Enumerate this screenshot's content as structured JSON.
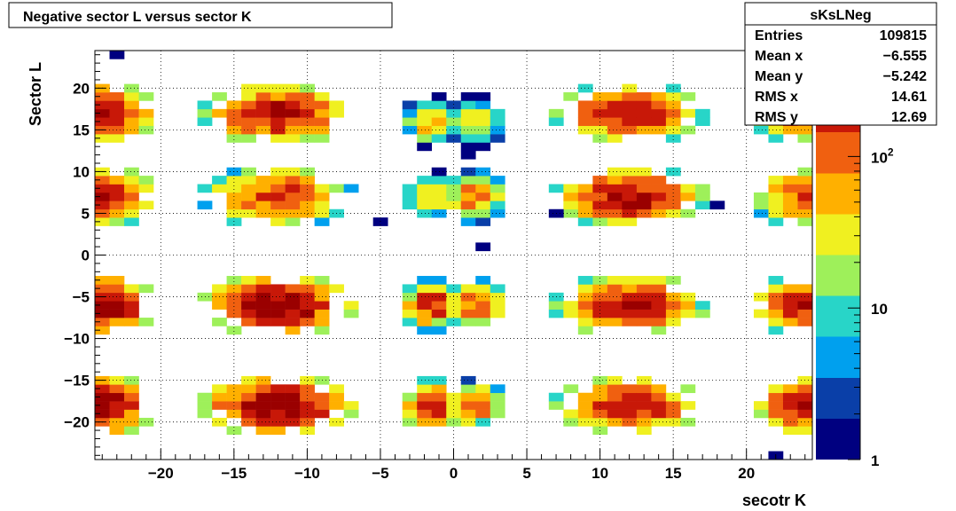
{
  "chart_data": {
    "type": "heatmap",
    "title": "Negative sector L versus sector K",
    "xlabel": "secotr K",
    "ylabel": "Sector L",
    "xlim": [
      -24.5,
      24.5
    ],
    "ylim": [
      -24.5,
      24.5
    ],
    "x_ticks": [
      "−20",
      "−15",
      "−10",
      "−5",
      "0",
      "5",
      "10",
      "15",
      "20"
    ],
    "x_tick_values": [
      -20,
      -15,
      -10,
      -5,
      0,
      5,
      10,
      15,
      20
    ],
    "y_ticks": [
      "−20",
      "−15",
      "−10",
      "−5",
      "0",
      "5",
      "10",
      "15",
      "20"
    ],
    "y_tick_values": [
      -20,
      -15,
      -10,
      -5,
      0,
      5,
      10,
      15,
      20
    ],
    "z_scale": "log",
    "z_range": [
      1,
      500
    ],
    "z_ticks": [
      "1",
      "10",
      "10^2"
    ],
    "z_tick_values": [
      1,
      10,
      100
    ],
    "grid": true,
    "colormap": [
      "#000080",
      "#0a3fa8",
      "#00a0ee",
      "#28d5c8",
      "#9ef05a",
      "#f0f020",
      "#ffb000",
      "#f06010",
      "#c81808",
      "#9a0000"
    ],
    "clusters": [
      {
        "xc": -12,
        "yc": 17,
        "rx": 3.5,
        "ry": 2.5,
        "peak": 300
      },
      {
        "xc": -12,
        "yc": 7,
        "rx": 3.5,
        "ry": 2.5,
        "peak": 180
      },
      {
        "xc": -12,
        "yc": -6,
        "rx": 3.5,
        "ry": 2.5,
        "peak": 500
      },
      {
        "xc": -12,
        "yc": -18,
        "rx": 3.5,
        "ry": 2.5,
        "peak": 500
      },
      {
        "xc": 12,
        "yc": 17,
        "rx": 3.5,
        "ry": 2.5,
        "peak": 250
      },
      {
        "xc": 12,
        "yc": 7,
        "rx": 3.5,
        "ry": 2.5,
        "peak": 300
      },
      {
        "xc": 12,
        "yc": -6,
        "rx": 3.5,
        "ry": 2.5,
        "peak": 300
      },
      {
        "xc": 12,
        "yc": -18,
        "rx": 3.5,
        "ry": 2.5,
        "peak": 250
      },
      {
        "xc": -24,
        "yc": 17,
        "rx": 2.5,
        "ry": 2.5,
        "peak": 350
      },
      {
        "xc": -24,
        "yc": 7,
        "rx": 2.5,
        "ry": 2.5,
        "peak": 250
      },
      {
        "xc": -24,
        "yc": -6,
        "rx": 2.5,
        "ry": 2.5,
        "peak": 450
      },
      {
        "xc": -24,
        "yc": -18,
        "rx": 2.5,
        "ry": 2.5,
        "peak": 450
      },
      {
        "xc": 24,
        "yc": 17,
        "rx": 2.5,
        "ry": 2.5,
        "peak": 200
      },
      {
        "xc": 24,
        "yc": 7,
        "rx": 2.5,
        "ry": 2.5,
        "peak": 150
      },
      {
        "xc": 24,
        "yc": -6,
        "rx": 2.5,
        "ry": 2.5,
        "peak": 250
      },
      {
        "xc": 24,
        "yc": -18,
        "rx": 2.5,
        "ry": 2.5,
        "peak": 250
      },
      {
        "xc": -1.5,
        "yc": 16,
        "rx": 1.5,
        "ry": 2.0,
        "peak": 60
      },
      {
        "xc": 1.5,
        "yc": 16,
        "rx": 1.5,
        "ry": 2.0,
        "peak": 40
      },
      {
        "xc": -1.5,
        "yc": 7,
        "rx": 1.5,
        "ry": 2.0,
        "peak": 50
      },
      {
        "xc": 1.5,
        "yc": 7,
        "rx": 1.5,
        "ry": 2.0,
        "peak": 120
      },
      {
        "xc": -1.5,
        "yc": -6,
        "rx": 1.5,
        "ry": 2.0,
        "peak": 200
      },
      {
        "xc": 1.5,
        "yc": -6,
        "rx": 1.5,
        "ry": 2.0,
        "peak": 150
      },
      {
        "xc": -1.5,
        "yc": -18,
        "rx": 1.5,
        "ry": 2.0,
        "peak": 250
      },
      {
        "xc": 1.5,
        "yc": -18,
        "rx": 1.5,
        "ry": 2.0,
        "peak": 120
      }
    ],
    "isolated_bins": [
      {
        "x": -23,
        "y": 24,
        "v": 1
      },
      {
        "x": -1,
        "y": 19,
        "v": 1
      },
      {
        "x": 1,
        "y": 12,
        "v": 1
      },
      {
        "x": -5,
        "y": 4,
        "v": 1
      },
      {
        "x": 2,
        "y": 1,
        "v": 1
      },
      {
        "x": 7,
        "y": 5,
        "v": 1
      },
      {
        "x": 18,
        "y": 6,
        "v": 1
      },
      {
        "x": 22,
        "y": -4,
        "v": 1
      },
      {
        "x": 7,
        "y": -5,
        "v": 1
      },
      {
        "x": 22,
        "y": -24,
        "v": 1
      }
    ]
  },
  "stats": {
    "name": "sKsLNeg",
    "rows": [
      {
        "label": "Entries",
        "value": "109815"
      },
      {
        "label": "Mean x",
        "value": "−6.555"
      },
      {
        "label": "Mean y",
        "value": "−5.242"
      },
      {
        "label": "RMS x",
        "value": "14.61"
      },
      {
        "label": "RMS y",
        "value": "12.69"
      }
    ]
  },
  "colors": {
    "frame": "#000000",
    "grid": "#000000",
    "background": "#ffffff"
  }
}
